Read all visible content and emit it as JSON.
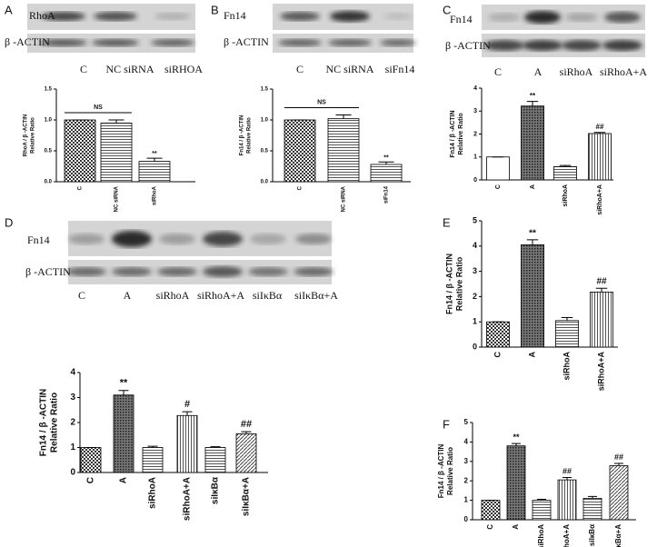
{
  "panels": [
    "A",
    "B",
    "C",
    "D",
    "E",
    "F"
  ],
  "blots": [
    {
      "rows": [
        "RhoA",
        "β -ACTIN"
      ],
      "lanes": [
        "C",
        "NC siRNA",
        "siRHOA"
      ]
    },
    {
      "rows": [
        "Fn14",
        "β -ACTIN"
      ],
      "lanes": [
        "C",
        "NC siRNA",
        "siFn14"
      ]
    },
    {
      "rows": [
        "Fn14",
        "β -ACTIN"
      ],
      "lanes": [
        "C",
        "A",
        "siRhoA",
        "siRhoA+A"
      ]
    },
    {
      "rows": [
        "Fn14",
        "β -ACTIN"
      ],
      "lanes": [
        "C",
        "A",
        "siRhoA",
        "siRhoA+A",
        "siIκBα",
        "siIκBα+A"
      ]
    }
  ],
  "chart_data": [
    {
      "type": "bar",
      "ylabel": [
        "RhoA / β -ACTIN",
        "Relative Ratio"
      ],
      "categories": [
        "C",
        "NC siRNA",
        "siRhoA"
      ],
      "values": [
        1.0,
        0.95,
        0.33
      ],
      "errors": [
        0,
        0.05,
        0.05
      ],
      "patterns": [
        "check",
        "hlines",
        "hlines"
      ],
      "annotations": [
        null,
        null,
        "**"
      ],
      "bracket": "NS",
      "ylim": [
        0,
        1.5
      ],
      "yticks": [
        {
          "value": 0,
          "label": "0.0"
        },
        0.5,
        {
          "value": 1,
          "label": "1.0"
        },
        1.5
      ]
    },
    {
      "type": "bar",
      "ylabel": [
        "Fn14 / β -ACTIN",
        "Relative Ratio"
      ],
      "categories": [
        "C",
        "NC siRNA",
        "siFn14"
      ],
      "values": [
        1.0,
        1.02,
        0.28
      ],
      "errors": [
        0,
        0.06,
        0.04
      ],
      "patterns": [
        "check",
        "hlines",
        "hlines"
      ],
      "annotations": [
        null,
        null,
        "**"
      ],
      "bracket": "NS",
      "ylim": [
        0,
        1.5
      ],
      "yticks": [
        {
          "value": 0,
          "label": "0.0"
        },
        0.5,
        {
          "value": 1,
          "label": "1.0"
        },
        1.5
      ]
    },
    {
      "type": "bar",
      "ylabel": [
        "Fn14 / β -ACTIN",
        "Relative Ratio"
      ],
      "categories": [
        "C",
        "A",
        "siRhoA",
        "siRhoA+A"
      ],
      "values": [
        1.0,
        3.22,
        0.58,
        2.02
      ],
      "errors": [
        0,
        0.2,
        0.05,
        0.05
      ],
      "patterns": [
        "plain",
        "dots",
        "hlines",
        "vlines"
      ],
      "annotations": [
        null,
        "**",
        null,
        "##"
      ],
      "ylim": [
        0,
        4
      ],
      "yticks": [
        0,
        1,
        2,
        3,
        4
      ]
    },
    {
      "type": "bar",
      "ylabel": [
        "Fn14 / β -ACTIN",
        "Relative Ratio"
      ],
      "categories": [
        "C",
        "A",
        "siRhoA",
        "siRhoA+A",
        "siIκBα",
        "siIκBα+A"
      ],
      "values": [
        1.0,
        3.1,
        1.0,
        2.28,
        1.0,
        1.55
      ],
      "errors": [
        0,
        0.18,
        0.05,
        0.15,
        0.03,
        0.08
      ],
      "patterns": [
        "check",
        "dots",
        "hlines",
        "vlines",
        "hlines",
        "diag"
      ],
      "annotations": [
        null,
        "**",
        null,
        "#",
        null,
        "##"
      ],
      "ylim": [
        0,
        4
      ],
      "yticks": [
        0,
        1,
        2,
        3,
        4
      ]
    },
    {
      "type": "bar",
      "ylabel": [
        "Fn14 / β -ACTIN",
        "Relative Ratio"
      ],
      "categories": [
        "C",
        "A",
        "siRhoA",
        "siRhoA+A"
      ],
      "values": [
        1.0,
        4.05,
        1.05,
        2.18
      ],
      "errors": [
        0,
        0.2,
        0.12,
        0.15
      ],
      "patterns": [
        "check",
        "dots",
        "hlines",
        "vlines"
      ],
      "annotations": [
        null,
        "**",
        null,
        "##"
      ],
      "ylim": [
        0,
        5
      ],
      "yticks": [
        0,
        1,
        2,
        3,
        4,
        5
      ]
    },
    {
      "type": "bar",
      "ylabel": [
        "Fn14 / β -ACTIN",
        "Relative Ratio"
      ],
      "categories": [
        "C",
        "A",
        "siRhoA",
        "siRhoA+A",
        "siIκBα",
        "siIκBα+A"
      ],
      "values": [
        1.0,
        3.8,
        1.0,
        2.05,
        1.1,
        2.78
      ],
      "errors": [
        0,
        0.12,
        0.05,
        0.12,
        0.1,
        0.12
      ],
      "patterns": [
        "check",
        "dots",
        "hlines",
        "vlines",
        "hlines",
        "diag"
      ],
      "annotations": [
        null,
        "**",
        null,
        "##",
        null,
        "##"
      ],
      "ylim": [
        0,
        5
      ],
      "yticks": [
        0,
        1,
        2,
        3,
        4,
        5
      ]
    }
  ]
}
